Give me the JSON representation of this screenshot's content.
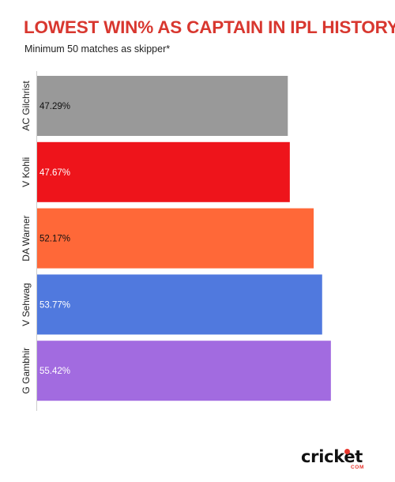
{
  "title": "LOWEST WIN% AS CAPTAIN IN IPL HISTORY",
  "subtitle": "Minimum 50 matches as skipper*",
  "logo": {
    "word": "cricket",
    "sub": "COM"
  },
  "chart_data": {
    "type": "bar",
    "orientation": "horizontal",
    "categories": [
      "AC Gilchrist",
      "V Kohli",
      "DA Warner",
      "V Sehwag",
      "G Gambhir"
    ],
    "values": [
      47.29,
      47.67,
      52.17,
      53.77,
      55.42
    ],
    "value_labels": [
      "47.29%",
      "47.67%",
      "52.17%",
      "53.77%",
      "55.42%"
    ],
    "colors": [
      "#999999",
      "#ee141b",
      "#ff6838",
      "#5079de",
      "#a26be0"
    ],
    "label_colors": [
      "#111111",
      "#ffffff",
      "#111111",
      "#ffffff",
      "#ffffff"
    ],
    "title": "LOWEST WIN% AS CAPTAIN IN IPL HISTORY",
    "xlabel": "",
    "ylabel": "",
    "xlim": [
      0,
      62
    ],
    "grid": false,
    "legend": "none"
  }
}
